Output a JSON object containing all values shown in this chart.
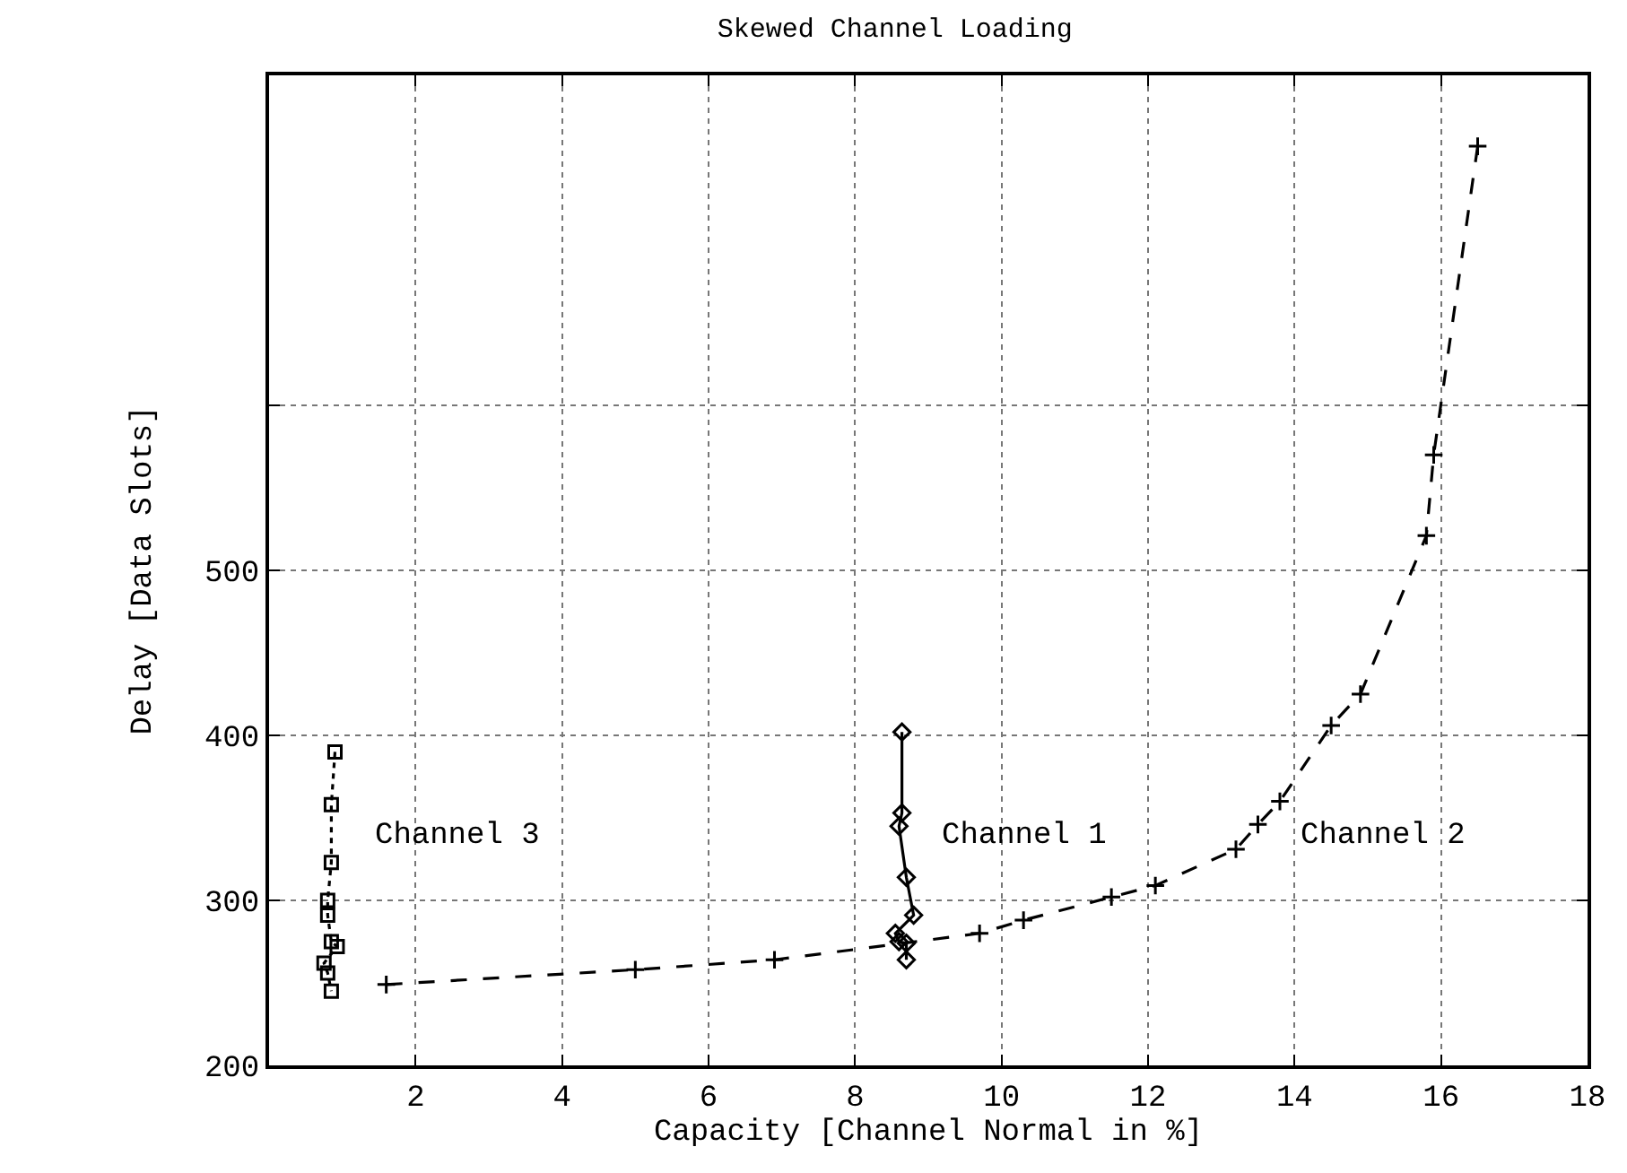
{
  "chart_data": {
    "type": "line",
    "title": "Skewed Channel Loading",
    "xlabel": "Capacity [Channel Normal in %]",
    "ylabel": "Delay [Data Slots]",
    "xlim": [
      0,
      18
    ],
    "xticks": [
      2,
      4,
      6,
      8,
      10,
      12,
      14,
      16,
      18
    ],
    "ylim": [
      200,
      800
    ],
    "yticks": [
      200,
      300,
      400,
      500,
      {
        "value": 600,
        "label": null
      }
    ],
    "grid": true,
    "legend": false,
    "series": [
      {
        "name": "Channel 3",
        "color": "#000000",
        "marker": "square",
        "line_style": "dotted",
        "x": [
          0.9,
          0.85,
          0.85,
          0.8,
          0.8,
          0.85,
          0.93,
          0.75,
          0.8,
          0.85
        ],
        "values": [
          390,
          358,
          323,
          300,
          291,
          275,
          272,
          262,
          256,
          245
        ]
      },
      {
        "name": "Channel 1",
        "color": "#000000",
        "marker": "diamond",
        "line_style": "solid",
        "x": [
          8.64,
          8.64,
          8.6,
          8.7,
          8.8,
          8.55,
          8.6,
          8.7,
          8.7
        ],
        "values": [
          402,
          353,
          345,
          314,
          291,
          280,
          275,
          274,
          264
        ]
      },
      {
        "name": "Channel 2",
        "color": "#000000",
        "marker": "cross",
        "line_style": "dashed",
        "x": [
          1.6,
          5.0,
          6.9,
          9.7,
          10.3,
          11.5,
          12.1,
          13.2,
          13.5,
          13.8,
          14.5,
          14.9,
          15.8,
          15.9,
          16.5
        ],
        "values": [
          249,
          258,
          264,
          280,
          288,
          302,
          309,
          331,
          346,
          360,
          406,
          425,
          521,
          570,
          757
        ]
      }
    ]
  }
}
